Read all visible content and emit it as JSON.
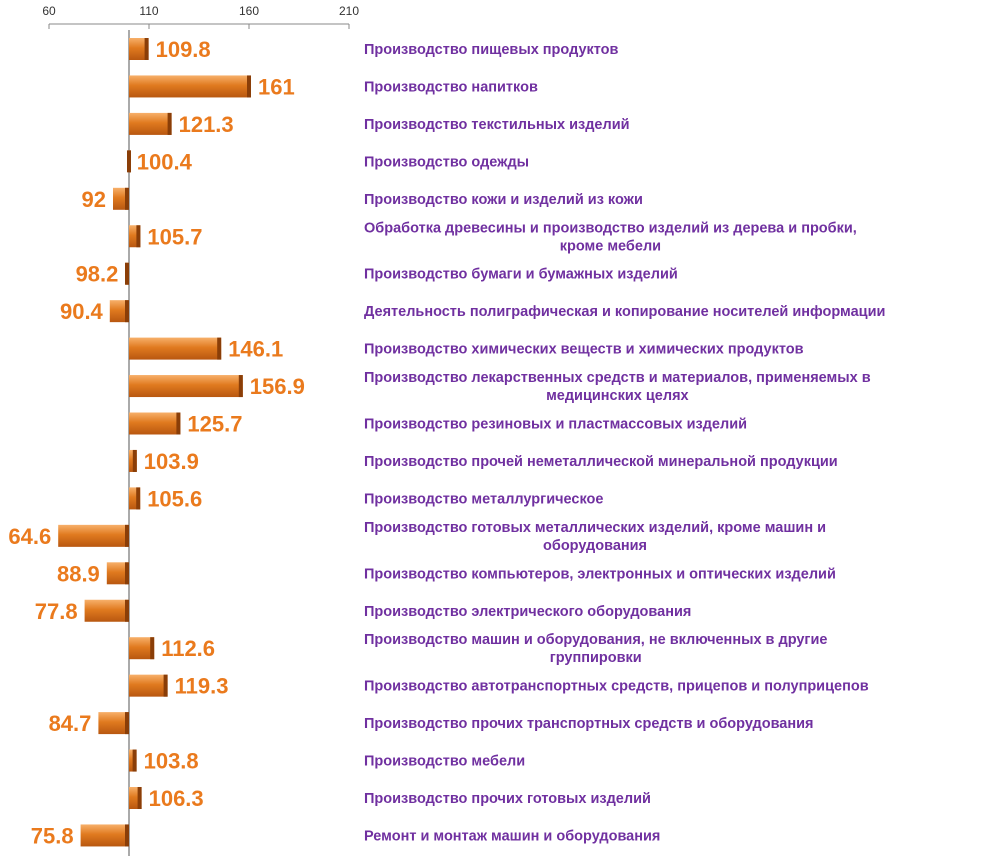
{
  "colors": {
    "bar": "#e07a1f",
    "value_label": "#ea7a1d",
    "category_label": "#7030a0",
    "axis": "#888888"
  },
  "chart_data": {
    "type": "bar",
    "orientation": "horizontal",
    "title": "",
    "xlabel": "",
    "ylabel": "",
    "xlim": [
      60,
      210
    ],
    "baseline": 100,
    "ticks": [
      "60",
      "110",
      "160",
      "210"
    ],
    "grid": false,
    "categories": [
      [
        "Производство пищевых продуктов"
      ],
      [
        "Производство напитков"
      ],
      [
        "Производство текстильных изделий"
      ],
      [
        "Производство одежды"
      ],
      [
        "Производство кожи и изделий из кожи"
      ],
      [
        "Обработка древесины и производство изделий из дерева и пробки,",
        "кроме мебели"
      ],
      [
        "Производство бумаги и бумажных изделий"
      ],
      [
        "Деятельность полиграфическая и копирование носителей информации"
      ],
      [
        "Производство химических веществ и химических продуктов"
      ],
      [
        "Производство лекарственных средств и материалов, применяемых в",
        "медицинских целях"
      ],
      [
        "Производство резиновых и пластмассовых изделий"
      ],
      [
        "Производство прочей неметаллической минеральной продукции"
      ],
      [
        "Производство металлургическое"
      ],
      [
        "Производство готовых металлических изделий, кроме машин и",
        "оборудования"
      ],
      [
        "Производство компьютеров, электронных и оптических изделий"
      ],
      [
        "Производство электрического оборудования"
      ],
      [
        "Производство машин и оборудования, не включенных в другие",
        "группировки"
      ],
      [
        "Производство автотранспортных средств, прицепов и полуприцепов"
      ],
      [
        "Производство прочих транспортных средств и оборудования"
      ],
      [
        "Производство мебели"
      ],
      [
        "Производство прочих готовых изделий"
      ],
      [
        "Ремонт и монтаж машин и оборудования"
      ]
    ],
    "values": [
      109.8,
      161,
      121.3,
      100.4,
      92,
      105.7,
      98.2,
      90.4,
      146.1,
      156.9,
      125.7,
      103.9,
      105.6,
      64.6,
      88.9,
      77.8,
      112.6,
      119.3,
      84.7,
      103.8,
      106.3,
      75.8
    ],
    "value_labels": [
      "109.8",
      "161",
      "121.3",
      "100.4",
      "92",
      "105.7",
      "98.2",
      "90.4",
      "146.1",
      "156.9",
      "125.7",
      "103.9",
      "105.6",
      "64.6",
      "88.9",
      "77.8",
      "112.6",
      "119.3",
      "84.7",
      "103.8",
      "106.3",
      "75.8"
    ]
  }
}
